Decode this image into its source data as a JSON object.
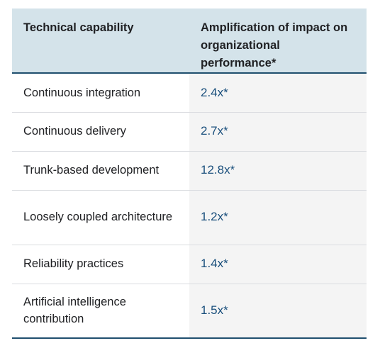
{
  "table": {
    "headers": [
      "Technical capability",
      "Amplification of impact on organizational performance*"
    ],
    "rows": [
      {
        "capability": "Continuous integration",
        "amplification": "2.4x*"
      },
      {
        "capability": "Continuous delivery",
        "amplification": "2.7x*"
      },
      {
        "capability": "Trunk-based development",
        "amplification": "12.8x*"
      },
      {
        "capability": "Loosely coupled architecture",
        "amplification": "1.2x*"
      },
      {
        "capability": "Reliability practices",
        "amplification": "1.4x*"
      },
      {
        "capability": "Artificial intelligence contribution",
        "amplification": "1.5x*"
      }
    ]
  },
  "colors": {
    "header_bg": "#d4e3ea",
    "value_text": "#1a4f7c",
    "rule": "#1f4f6e",
    "value_col_bg": "#f4f4f4"
  }
}
